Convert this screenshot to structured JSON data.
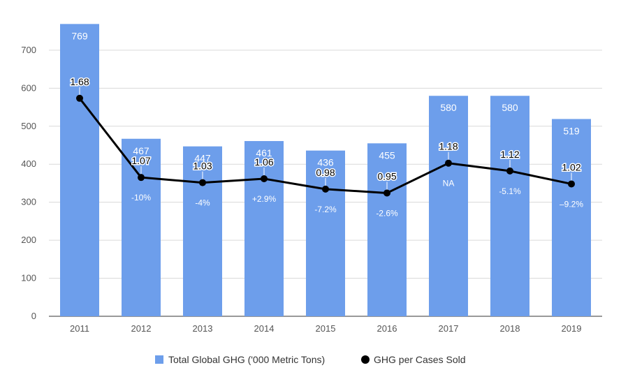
{
  "chart_data": {
    "type": "bar",
    "categories": [
      "2011",
      "2012",
      "2013",
      "2014",
      "2015",
      "2016",
      "2017",
      "2018",
      "2019"
    ],
    "series": [
      {
        "name": "Total Global GHG ('000 Metric Tons)",
        "type": "bar",
        "axis": "left",
        "color": "#6d9eeb",
        "values": [
          769,
          467,
          447,
          461,
          436,
          455,
          580,
          580,
          519
        ],
        "labels": [
          "769",
          "467",
          "447",
          "461",
          "436",
          "455",
          "580",
          "580",
          "519"
        ]
      },
      {
        "name": "GHG per Cases Sold",
        "type": "line",
        "axis": "right",
        "color": "#000000",
        "values": [
          1.68,
          1.07,
          1.03,
          1.06,
          0.98,
          0.95,
          1.18,
          1.12,
          1.02
        ],
        "labels": [
          "1.68",
          "1.07",
          "1.03",
          "1.06",
          "0.98",
          "0.95",
          "1.18",
          "1.12",
          "1.02"
        ]
      }
    ],
    "change_labels": [
      "",
      "-10%",
      "-4%",
      "+2.9%",
      "-7.2%",
      "-2.6%",
      "NA",
      "-5.1%",
      "–9.2%"
    ],
    "yticks": [
      "0",
      "100",
      "200",
      "300",
      "400",
      "500",
      "600",
      "700"
    ],
    "ylim": [
      0,
      780
    ],
    "y2lim": [
      0,
      2.33
    ],
    "grid": true,
    "legend_position": "bottom"
  }
}
